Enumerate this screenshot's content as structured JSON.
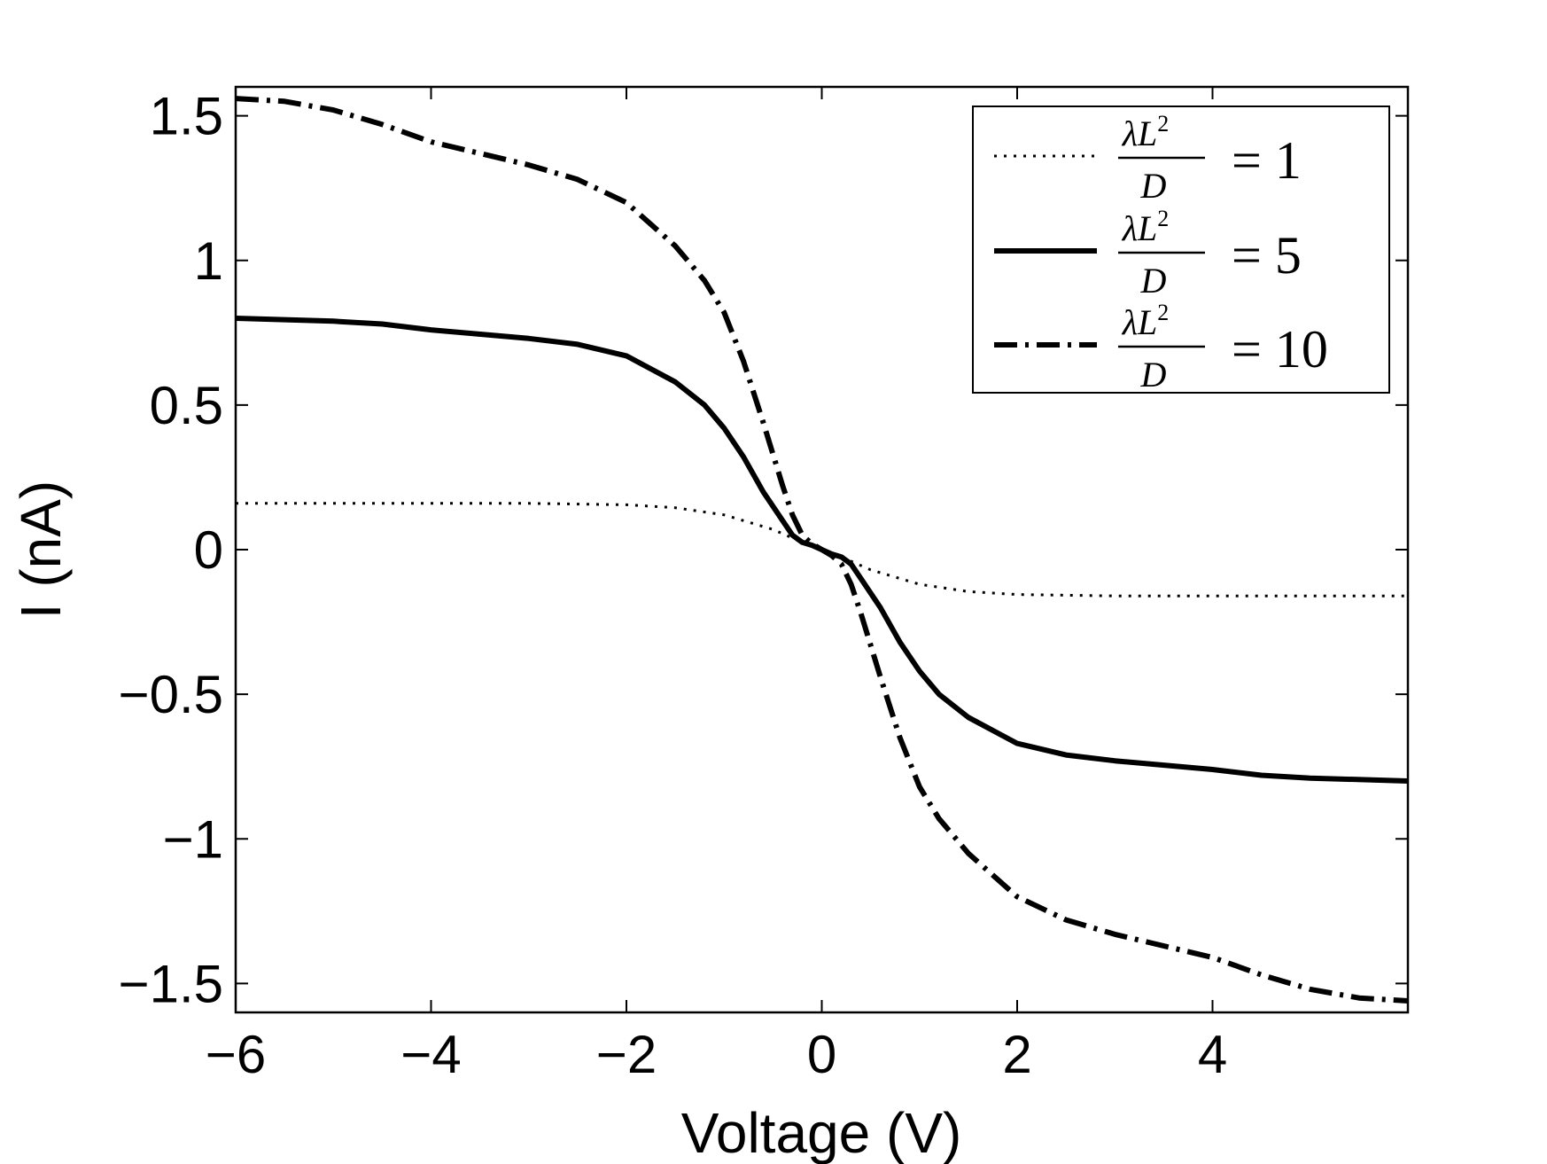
{
  "chart_data": {
    "type": "line",
    "title": "",
    "xlabel": "Voltage (V)",
    "ylabel": "I (nA)",
    "xlim": [
      -6,
      6
    ],
    "ylim": [
      -1.6,
      1.6
    ],
    "x_ticks": [
      -6,
      -4,
      -2,
      0,
      2,
      4
    ],
    "x_tick_labels": [
      "−6",
      "−4",
      "−2",
      "0",
      "2",
      "4"
    ],
    "y_ticks": [
      1.5,
      1,
      0.5,
      0,
      -0.5,
      -1,
      -1.5
    ],
    "y_tick_labels": [
      "1.5",
      "1",
      "0.5",
      "0",
      "−0.5",
      "−1",
      "−1.5"
    ],
    "grid": false,
    "legend_position": "top-right",
    "series": [
      {
        "name": "λL²/D = 1",
        "legend": {
          "num_lambda": "λ",
          "num_L": "L",
          "num_exp": "2",
          "den": "D",
          "rhs": "= 1"
        },
        "style": "dotted",
        "x": [
          -6,
          -5,
          -4,
          -3,
          -2,
          -1.5,
          -1,
          -0.5,
          -0.2,
          0,
          0.2,
          0.5,
          1,
          1.5,
          2,
          3,
          4,
          5,
          6
        ],
        "y": [
          0.16,
          0.16,
          0.16,
          0.16,
          0.155,
          0.145,
          0.12,
          0.07,
          0.025,
          0,
          -0.025,
          -0.07,
          -0.12,
          -0.145,
          -0.155,
          -0.16,
          -0.16,
          -0.16,
          -0.16
        ]
      },
      {
        "name": "λL²/D = 5",
        "legend": {
          "num_lambda": "λ",
          "num_L": "L",
          "num_exp": "2",
          "den": "D",
          "rhs": "= 5"
        },
        "style": "solid",
        "x": [
          -6,
          -5,
          -4.5,
          -4,
          -3,
          -2.5,
          -2,
          -1.5,
          -1.2,
          -1,
          -0.8,
          -0.6,
          -0.4,
          -0.3,
          -0.2,
          -0.1,
          0,
          0.1,
          0.2,
          0.3,
          0.4,
          0.6,
          0.8,
          1,
          1.2,
          1.5,
          2,
          2.5,
          3,
          4,
          4.5,
          5,
          6
        ],
        "y": [
          0.8,
          0.79,
          0.78,
          0.76,
          0.73,
          0.71,
          0.67,
          0.58,
          0.5,
          0.42,
          0.32,
          0.2,
          0.1,
          0.05,
          0.025,
          0.015,
          0,
          -0.015,
          -0.025,
          -0.05,
          -0.1,
          -0.2,
          -0.32,
          -0.42,
          -0.5,
          -0.58,
          -0.67,
          -0.71,
          -0.73,
          -0.76,
          -0.78,
          -0.79,
          -0.8
        ]
      },
      {
        "name": "λL²/D = 10",
        "legend": {
          "num_lambda": "λ",
          "num_L": "L",
          "num_exp": "2",
          "den": "D",
          "rhs": "= 10"
        },
        "style": "dashdot",
        "x": [
          -6,
          -5.5,
          -5,
          -4.5,
          -4,
          -3.5,
          -3,
          -2.5,
          -2,
          -1.5,
          -1.2,
          -1,
          -0.8,
          -0.6,
          -0.4,
          -0.3,
          -0.2,
          -0.1,
          0,
          0.1,
          0.2,
          0.3,
          0.4,
          0.6,
          0.8,
          1,
          1.2,
          1.5,
          2,
          2.5,
          3,
          3.5,
          4,
          4.5,
          5,
          5.5,
          6
        ],
        "y": [
          1.56,
          1.55,
          1.52,
          1.47,
          1.41,
          1.37,
          1.33,
          1.28,
          1.2,
          1.05,
          0.93,
          0.82,
          0.65,
          0.44,
          0.22,
          0.12,
          0.05,
          0.02,
          0,
          -0.02,
          -0.05,
          -0.12,
          -0.22,
          -0.44,
          -0.65,
          -0.82,
          -0.93,
          -1.05,
          -1.2,
          -1.28,
          -1.33,
          -1.37,
          -1.41,
          -1.47,
          -1.52,
          -1.55,
          -1.56
        ]
      }
    ]
  }
}
